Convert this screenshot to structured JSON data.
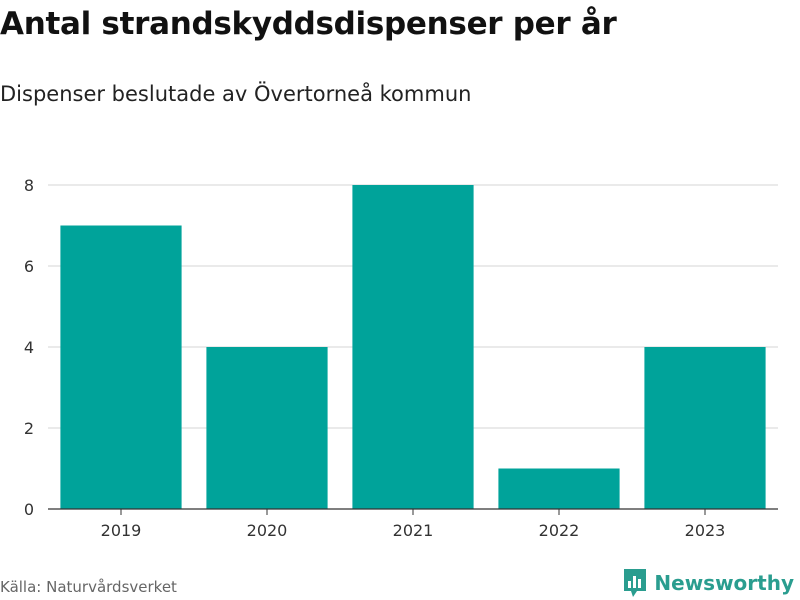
{
  "header": {
    "title": "Antal strandskyddsdispenser per år",
    "subtitle": "Dispenser beslutade av Övertorneå kommun"
  },
  "footer": {
    "source": "Källa: Naturvårdsverket",
    "brand": "Newsworthy",
    "brand_icon": "bar-chart-speech-bubble-icon",
    "brand_color": "#2a9d8f"
  },
  "colors": {
    "bar": "#00a39a",
    "grid": "#dddddd",
    "axis": "#333333"
  },
  "chart_data": {
    "type": "bar",
    "categories": [
      "2019",
      "2020",
      "2021",
      "2022",
      "2023"
    ],
    "values": [
      7,
      4,
      8,
      1,
      4
    ],
    "title": "Antal strandskyddsdispenser per år",
    "subtitle": "Dispenser beslutade av Övertorneå kommun",
    "xlabel": "",
    "ylabel": "",
    "ylim": [
      0,
      8
    ],
    "yticks": [
      0,
      2,
      4,
      6,
      8
    ],
    "grid": true,
    "legend": "none"
  }
}
